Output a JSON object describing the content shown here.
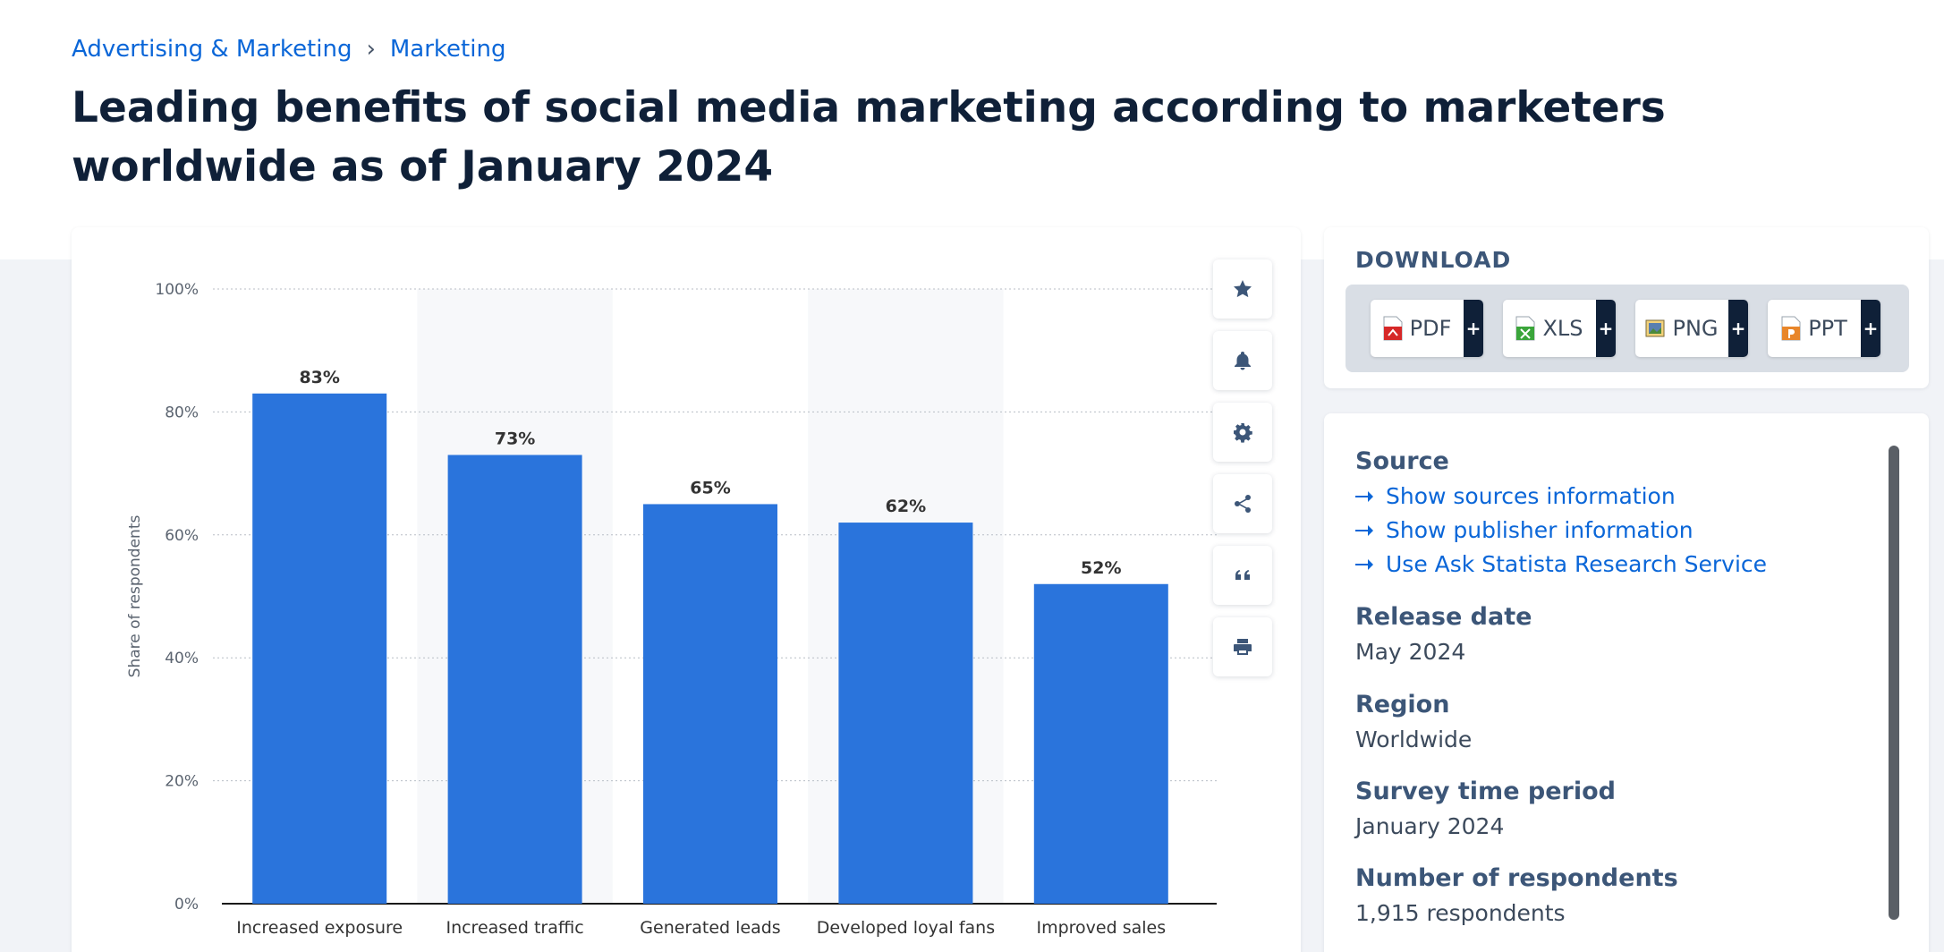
{
  "breadcrumb": {
    "items": [
      "Advertising & Marketing",
      "Marketing"
    ],
    "separator": "›"
  },
  "page_title": "Leading benefits of social media marketing according to marketers worldwide as of January 2024",
  "chart_data": {
    "type": "bar",
    "categories": [
      "Increased exposure",
      "Increased traffic",
      "Generated leads",
      "Developed loyal fans",
      "Improved sales"
    ],
    "values": [
      83,
      73,
      65,
      62,
      52
    ],
    "data_labels": [
      "83%",
      "73%",
      "65%",
      "62%",
      "52%"
    ],
    "ylabel": "Share of respondents",
    "ylim": [
      0,
      100
    ],
    "yticks": [
      0,
      20,
      40,
      60,
      80,
      100
    ],
    "ytick_labels": [
      "0%",
      "20%",
      "40%",
      "60%",
      "80%",
      "100%"
    ],
    "grid": true,
    "bar_color": "#2a74dc"
  },
  "chart_tools": [
    {
      "name": "favorite",
      "icon": "star-icon"
    },
    {
      "name": "notification",
      "icon": "bell-icon"
    },
    {
      "name": "settings",
      "icon": "gear-icon"
    },
    {
      "name": "share",
      "icon": "share-icon"
    },
    {
      "name": "cite",
      "icon": "quote-icon"
    },
    {
      "name": "print",
      "icon": "printer-icon"
    }
  ],
  "download": {
    "title": "DOWNLOAD",
    "formats": [
      {
        "label": "PDF",
        "icon": "pdf-file-icon",
        "color": "#d62828"
      },
      {
        "label": "XLS",
        "icon": "xls-file-icon",
        "color": "#3aa53a"
      },
      {
        "label": "PNG",
        "icon": "png-file-icon",
        "color": "#5a7fb0"
      },
      {
        "label": "PPT",
        "icon": "ppt-file-icon",
        "color": "#e8862a"
      }
    ],
    "plus": "+"
  },
  "info": {
    "source_heading": "Source",
    "links": [
      "Show sources information",
      "Show publisher information",
      "Use Ask Statista Research Service"
    ],
    "release_heading": "Release date",
    "release_value": "May 2024",
    "region_heading": "Region",
    "region_value": "Worldwide",
    "survey_heading": "Survey time period",
    "survey_value": "January 2024",
    "respondents_heading": "Number of respondents",
    "respondents_value": "1,915 respondents"
  },
  "colors": {
    "accent": "#0a66d8",
    "title": "#0f2038",
    "bar": "#2a74dc"
  }
}
